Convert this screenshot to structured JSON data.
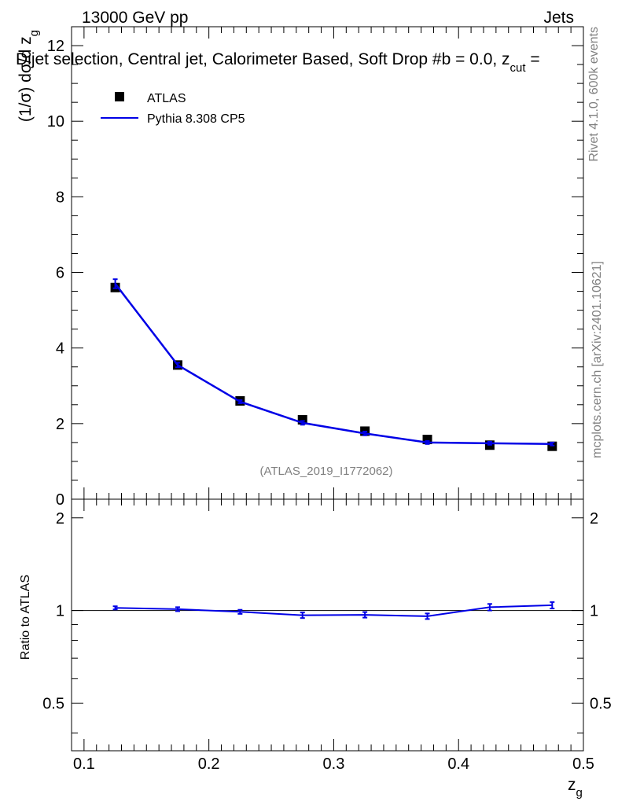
{
  "header": {
    "beam": "13000 GeV pp",
    "category": "Jets",
    "plot_title": "Dijet selection, Central jet, Calorimeter Based, Soft Drop #b = 0.0, z",
    "plot_title_sub": "cut",
    "plot_title_tail": " ="
  },
  "side": {
    "rivet": "Rivet 4.1.0,  600k events",
    "mcplots": "mcplots.cern.ch [arXiv:2401.10621]"
  },
  "analysis_id": "(ATLAS_2019_I1772062)",
  "colors": {
    "data": "#000000",
    "mc": "#0000e6",
    "grey": "#808080"
  },
  "chart_data": [
    {
      "type": "line",
      "panel": "main",
      "ylabel": "(1/σ) dσ/d z",
      "ylabel_sub": "g",
      "xlim": [
        0.09,
        0.5
      ],
      "ylim": [
        0,
        12.5
      ],
      "yticks": [
        0,
        2,
        4,
        6,
        8,
        10,
        12
      ],
      "ytick_labels": [
        "0",
        "2",
        "4",
        "6",
        "8",
        "10",
        "12"
      ],
      "legend": {
        "position": "top-left",
        "entries": [
          "ATLAS",
          "Pythia 8.308 CP5"
        ]
      },
      "x": [
        0.125,
        0.175,
        0.225,
        0.275,
        0.325,
        0.375,
        0.425,
        0.475
      ],
      "series": [
        {
          "name": "ATLAS",
          "style": "markers",
          "values": [
            5.6,
            3.55,
            2.6,
            2.1,
            1.8,
            1.58,
            1.43,
            1.4
          ]
        },
        {
          "name": "Pythia 8.308 CP5",
          "style": "line",
          "values": [
            5.7,
            3.55,
            2.58,
            2.02,
            1.74,
            1.5,
            1.48,
            1.46
          ],
          "errors": [
            0.12,
            0.06,
            0.04,
            0.05,
            0.05,
            0.04,
            0.04,
            0.04
          ]
        }
      ]
    },
    {
      "type": "line",
      "panel": "ratio",
      "ylabel": "Ratio to ATLAS",
      "xlabel": "z",
      "xlabel_sub": "g",
      "xlim": [
        0.09,
        0.5
      ],
      "ylim": [
        0.35,
        2.3
      ],
      "log_y": true,
      "yticks": [
        0.5,
        1,
        2
      ],
      "ytick_labels": [
        "0.5",
        "1",
        "2"
      ],
      "xticks": [
        0.1,
        0.2,
        0.3,
        0.4,
        0.5
      ],
      "xtick_labels": [
        "0.1",
        "0.2",
        "0.3",
        "0.4",
        "0.5"
      ],
      "x": [
        0.125,
        0.175,
        0.225,
        0.275,
        0.325,
        0.375,
        0.425,
        0.475
      ],
      "series": [
        {
          "name": "Pythia 8.308 CP5",
          "values": [
            1.02,
            1.01,
            0.99,
            0.965,
            0.968,
            0.958,
            1.025,
            1.04
          ],
          "errors": [
            0.012,
            0.015,
            0.015,
            0.02,
            0.02,
            0.02,
            0.025,
            0.025
          ]
        }
      ]
    }
  ]
}
